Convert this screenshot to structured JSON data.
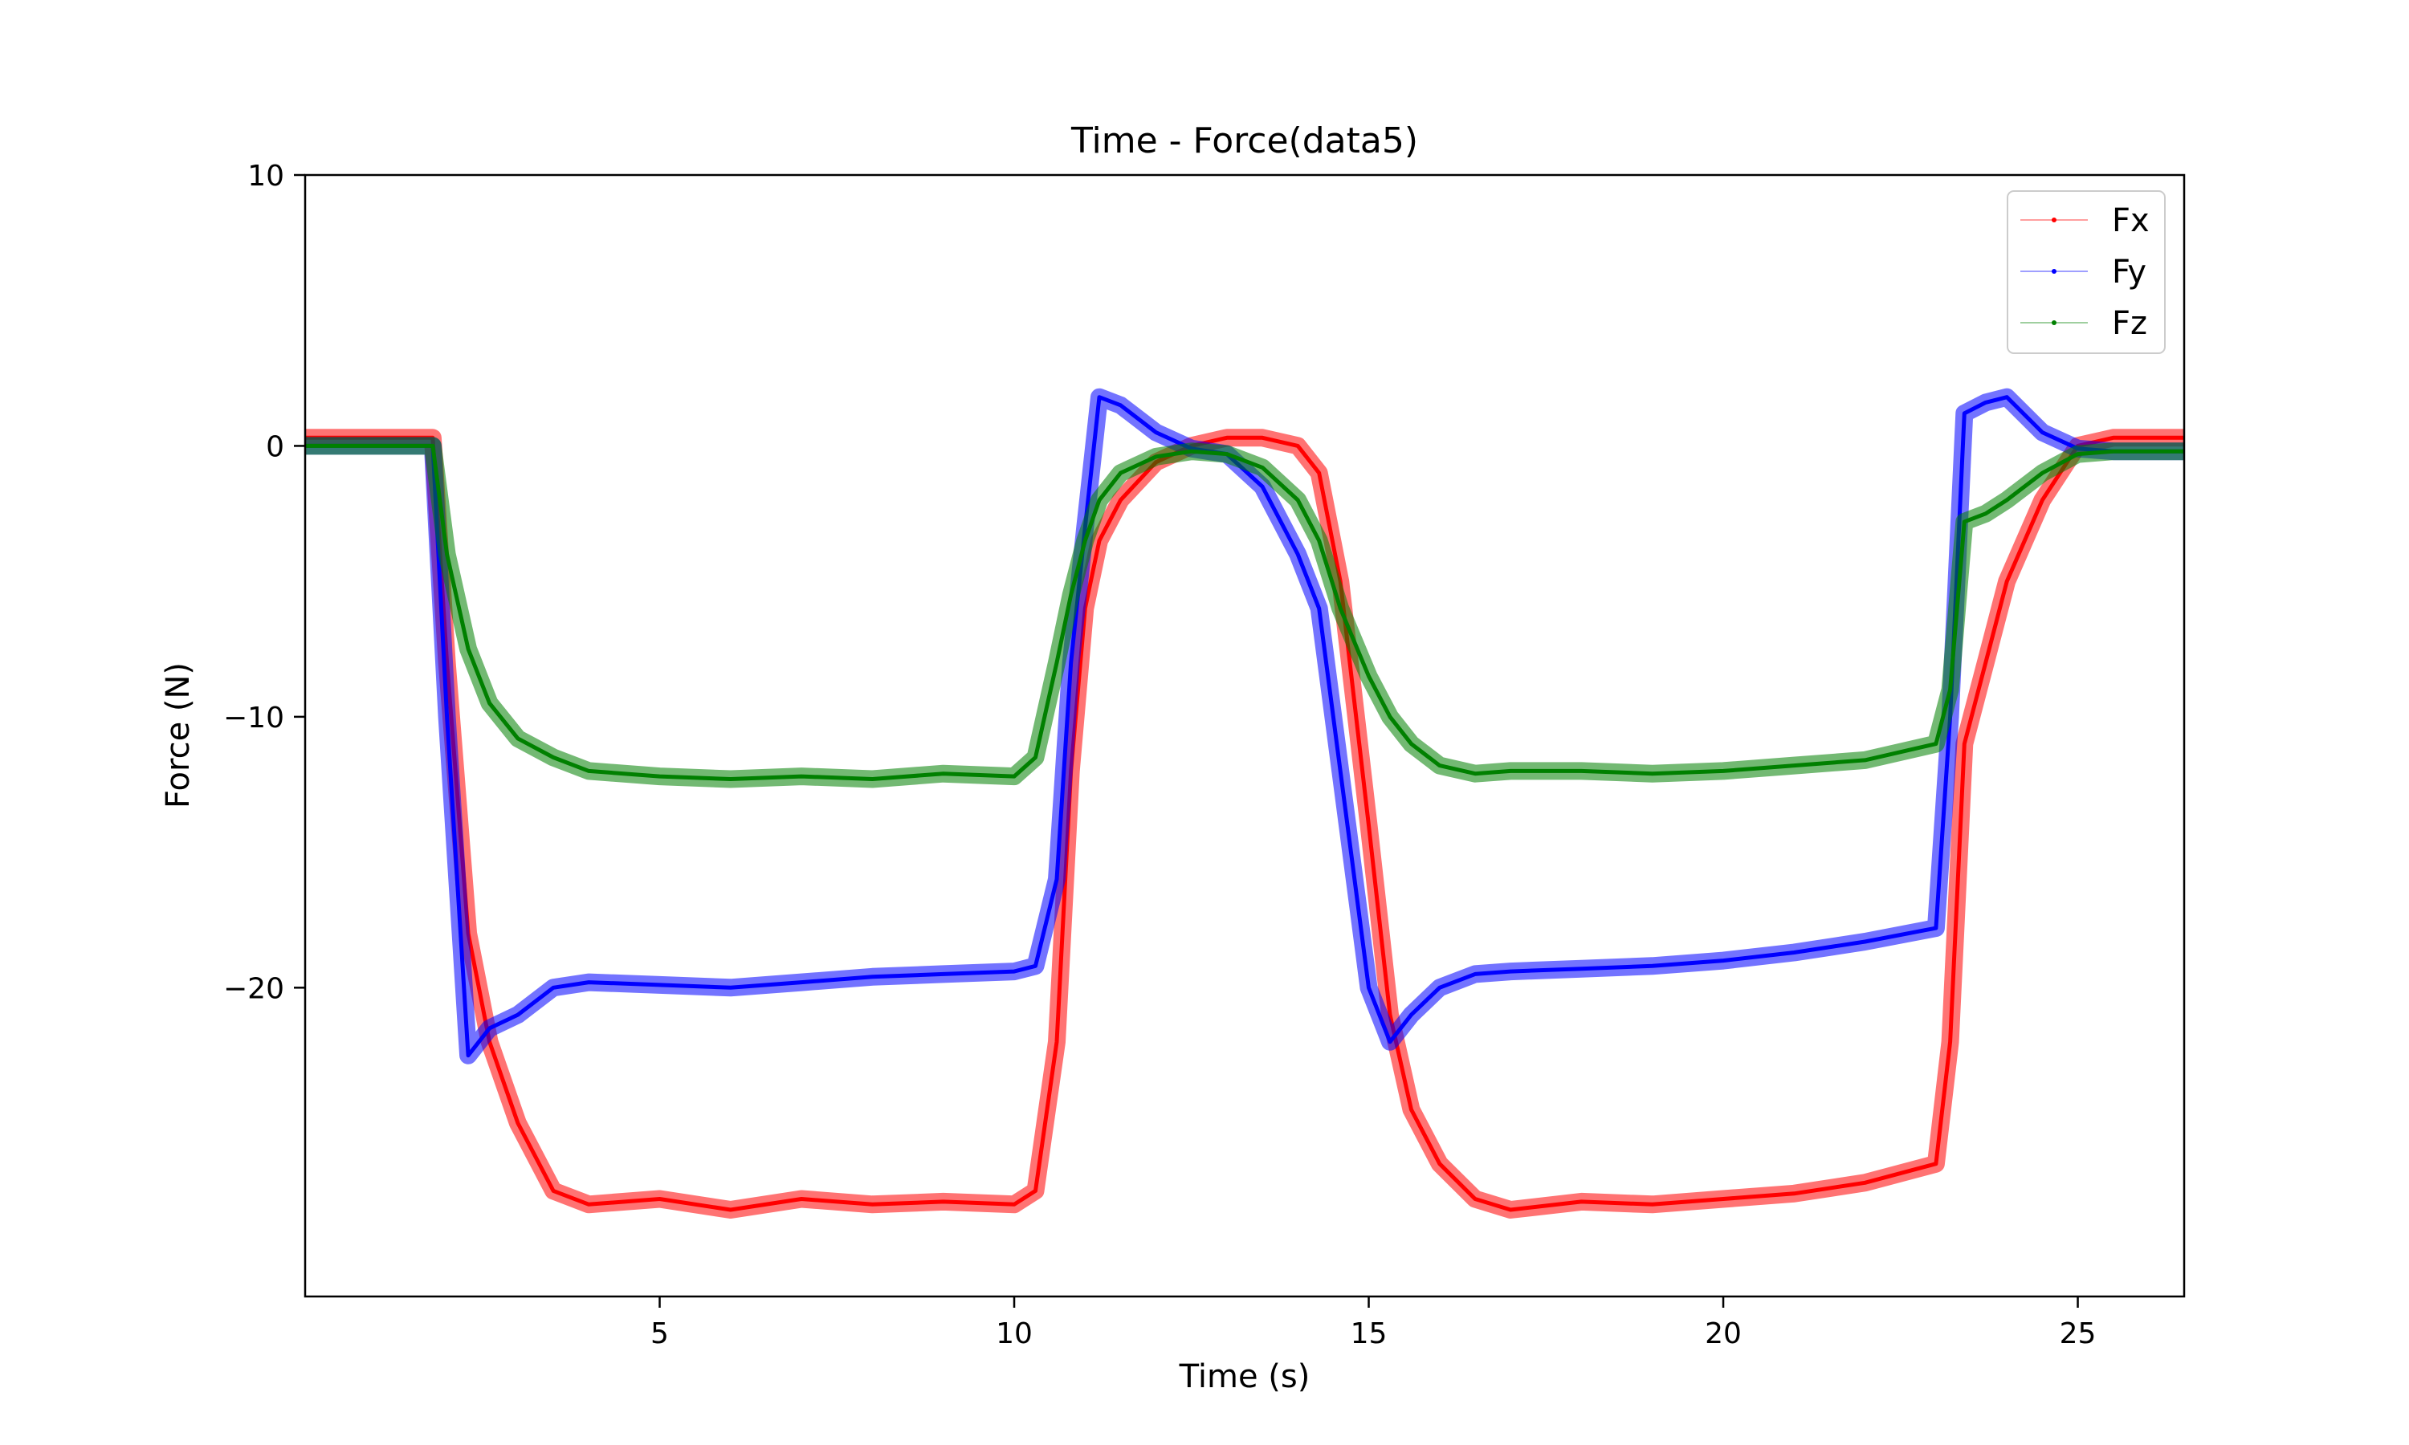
{
  "chart_data": {
    "type": "line",
    "title": "Time - Force(data5)",
    "xlabel": "Time (s)",
    "ylabel": "Force (N)",
    "xlim": [
      0,
      26.5
    ],
    "ylim": [
      -31.4,
      10
    ],
    "xticks": [
      5,
      10,
      15,
      20,
      25
    ],
    "xtick_labels": [
      "5",
      "10",
      "15",
      "20",
      "25"
    ],
    "yticks": [
      10,
      0,
      -10,
      -20
    ],
    "ytick_labels": [
      "10",
      "0",
      "−10",
      "−20"
    ],
    "grid": false,
    "legend_position": "top-right",
    "x": [
      0,
      1.5,
      1.8,
      2.0,
      2.3,
      2.6,
      3.0,
      3.5,
      4.0,
      5,
      6,
      7,
      8,
      9,
      10,
      10.3,
      10.6,
      10.8,
      11.0,
      11.2,
      11.5,
      12.0,
      12.5,
      13.0,
      13.5,
      14.0,
      14.3,
      14.6,
      15.0,
      15.3,
      15.6,
      16.0,
      16.5,
      17,
      18,
      19,
      20,
      21,
      22,
      23,
      23.2,
      23.4,
      23.7,
      24.0,
      24.5,
      25.0,
      25.5,
      26.5
    ],
    "series": [
      {
        "name": "Fx",
        "color": "#ff0000",
        "values": [
          0.3,
          0.3,
          0.3,
          -8.0,
          -18.0,
          -22.0,
          -25.0,
          -27.5,
          -28.0,
          -27.8,
          -28.2,
          -27.8,
          -28.0,
          -27.9,
          -28.0,
          -27.5,
          -22.0,
          -12.0,
          -6.0,
          -3.5,
          -2.0,
          -0.6,
          0.0,
          0.3,
          0.3,
          0.0,
          -1.0,
          -5.0,
          -14.0,
          -21.0,
          -24.5,
          -26.5,
          -27.8,
          -28.2,
          -27.9,
          -28.0,
          -27.8,
          -27.6,
          -27.2,
          -26.5,
          -22.0,
          -11.0,
          -8.0,
          -5.0,
          -2.0,
          0.0,
          0.3,
          0.3
        ]
      },
      {
        "name": "Fy",
        "color": "#0000ff",
        "values": [
          0.0,
          0.0,
          0.0,
          -10.0,
          -22.5,
          -21.5,
          -21.0,
          -20.0,
          -19.8,
          -19.9,
          -20.0,
          -19.8,
          -19.6,
          -19.5,
          -19.4,
          -19.2,
          -16.0,
          -8.0,
          -3.0,
          1.8,
          1.5,
          0.5,
          -0.1,
          -0.3,
          -1.5,
          -4.0,
          -6.0,
          -12.0,
          -20.0,
          -22.0,
          -21.0,
          -20.0,
          -19.5,
          -19.4,
          -19.3,
          -19.2,
          -19.0,
          -18.7,
          -18.3,
          -17.8,
          -10.0,
          1.2,
          1.6,
          1.8,
          0.5,
          -0.1,
          -0.2,
          -0.2
        ]
      },
      {
        "name": "Fz",
        "color": "#008000",
        "values": [
          0.0,
          0.0,
          0.0,
          -4.0,
          -7.5,
          -9.5,
          -10.8,
          -11.5,
          -12.0,
          -12.2,
          -12.3,
          -12.2,
          -12.3,
          -12.1,
          -12.2,
          -11.5,
          -8.0,
          -5.5,
          -3.5,
          -2.0,
          -1.0,
          -0.4,
          -0.2,
          -0.3,
          -0.8,
          -2.0,
          -3.5,
          -6.0,
          -8.5,
          -10.0,
          -11.0,
          -11.8,
          -12.1,
          -12.0,
          -12.0,
          -12.1,
          -12.0,
          -11.8,
          -11.6,
          -11.0,
          -9.0,
          -2.8,
          -2.5,
          -2.0,
          -1.0,
          -0.3,
          -0.2,
          -0.2
        ]
      }
    ]
  }
}
